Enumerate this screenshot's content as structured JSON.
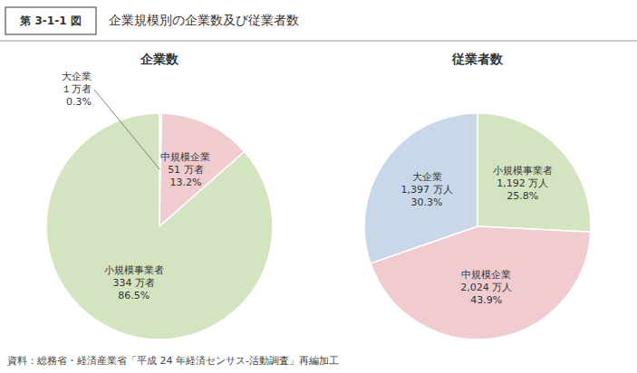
{
  "title": "企業規模別の企業数及び従業者数",
  "annotations": [
    "第 3-1-1 図",
    "資料：総務省・経済産業省「平成 24 年経済センサス-活動調査」再編加工"
  ],
  "chart_data": [
    {
      "type": "pie",
      "title": "企業数",
      "categories": [
        "大企業",
        "中規模企業",
        "小規模事業者"
      ],
      "values": [
        0.3,
        13.2,
        86.5
      ],
      "value_labels": [
        "0.3%",
        "13.2%",
        "86.5%"
      ],
      "count_labels": [
        "１万者",
        "51 万者",
        "334 万者"
      ],
      "colors": [
        "#d4e4c0",
        "#f0ccd0",
        "#d4e4c0"
      ],
      "data_labels": true
    },
    {
      "type": "pie",
      "title": "従業者数",
      "categories": [
        "小規模事業者",
        "中規模企業",
        "大企業"
      ],
      "values": [
        25.8,
        43.9,
        30.3
      ],
      "value_labels": [
        "25.8%",
        "43.9%",
        "30.3%"
      ],
      "count_labels": [
        "1,192 万人",
        "2,024 万人",
        "1,397 万人"
      ],
      "colors": [
        "#d4e4c0",
        "#f0ccd0",
        "#c8d8e8"
      ],
      "data_labels": true
    }
  ]
}
